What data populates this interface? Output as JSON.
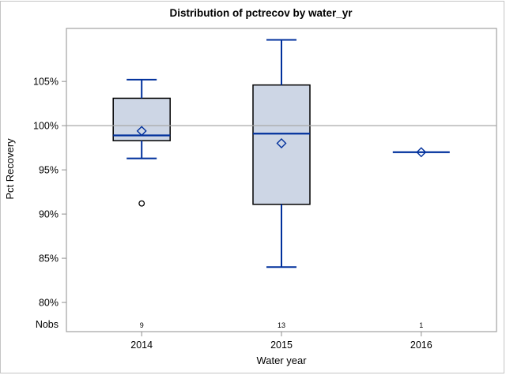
{
  "chart_data": {
    "type": "boxplot",
    "title": "Distribution of pctrecov by water_yr",
    "xlabel": "Water year",
    "ylabel": "Pct Recovery",
    "categories": [
      "2014",
      "2015",
      "2016"
    ],
    "nobs_row": {
      "label": "Nobs",
      "values": [
        "9",
        "13",
        "1"
      ]
    },
    "ylim": [
      76.7,
      111.0
    ],
    "y_ticks": [
      {
        "value": 105,
        "label": "105%"
      },
      {
        "value": 100,
        "label": "100%"
      },
      {
        "value": 95,
        "label": "95%"
      },
      {
        "value": 90,
        "label": "90%"
      },
      {
        "value": 85,
        "label": "85%"
      },
      {
        "value": 80,
        "label": "80%"
      }
    ],
    "reference_lines": [
      100
    ],
    "grid": false,
    "legend": "none",
    "series": [
      {
        "category": "2014",
        "n": 9,
        "whisker_low": 96.3,
        "q1": 98.3,
        "median": 98.9,
        "q3": 103.1,
        "whisker_high": 105.2,
        "mean": 99.4,
        "outliers": [
          91.2
        ]
      },
      {
        "category": "2015",
        "n": 13,
        "whisker_low": 84.0,
        "q1": 91.1,
        "median": 99.1,
        "q3": 104.6,
        "whisker_high": 109.7,
        "mean": 98.0,
        "outliers": []
      },
      {
        "category": "2016",
        "n": 1,
        "whisker_low": null,
        "q1": null,
        "median": 97.0,
        "q3": null,
        "whisker_high": null,
        "mean": 97.0,
        "outliers": []
      }
    ],
    "colors": {
      "box_fill": "#cdd6e5",
      "box_border": "#000000",
      "line_blue": "#00309c",
      "reference_line": "#a8a8a8",
      "frame": "#8f8f8f",
      "outlier": "#000000",
      "outer_border": "#c4c4c4",
      "text": "#000000"
    }
  }
}
